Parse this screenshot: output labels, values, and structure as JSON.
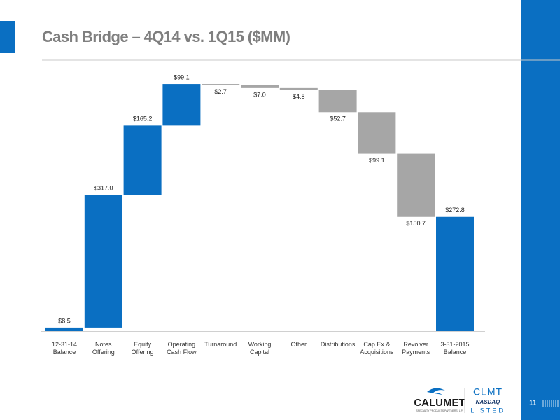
{
  "chart_data": {
    "type": "waterfall",
    "title": "Cash  Bridge – 4Q14 vs. 1Q15 ($MM)",
    "categories": [
      "12-31-14\nBalance",
      "Notes\nOffering",
      "Equity\nOffering",
      "Operating\nCash Flow",
      "Turnaround",
      "Working\nCapital",
      "Other",
      "Distributions",
      "Cap Ex &\nAcquisitions",
      "Revolver\nPayments",
      "3-31-2015\nBalance"
    ],
    "values": [
      8.5,
      317.0,
      165.2,
      99.1,
      -2.7,
      -7.0,
      -4.8,
      -52.7,
      -99.1,
      -150.7,
      272.8
    ],
    "value_labels": [
      "$8.5",
      "$317.0",
      "$165.2",
      "$99.1",
      "$2.7",
      "$7.0",
      "$4.8",
      "$52.7",
      "$99.1",
      "$150.7",
      "$272.8"
    ],
    "increase_color": "#0a6fc2",
    "decrease_color": "#a6a6a6",
    "ylim": [
      0,
      620
    ]
  },
  "footer": {
    "company": "CALUMET",
    "tagline": "SPECIALTY PRODUCTS PARTNERS, L.P.",
    "ticker": "CLMT",
    "exchange": "NASDAQ",
    "listed": "LISTED",
    "page": "11"
  }
}
